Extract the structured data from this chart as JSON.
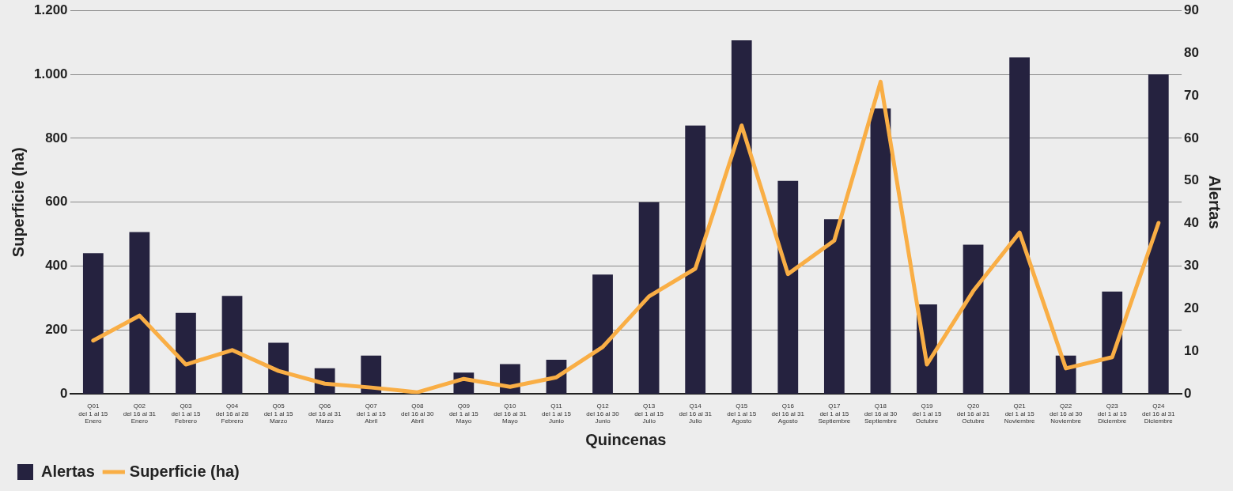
{
  "chart_data": {
    "type": "bar",
    "xlabel": "Quincenas",
    "ylabel": "Superficie (ha)",
    "y2label": "Alertas",
    "categories": [
      "Q01\ndel 1 al 15\nEnero",
      "Q02\ndel 16 al 31\nEnero",
      "Q03\ndel 1 al 15\nFebrero",
      "Q04\ndel 16 al 28\nFebrero",
      "Q05\ndel 1 al 15\nMarzo",
      "Q06\ndel 16 al 31\nMarzo",
      "Q07\ndel 1 al 15\nAbril",
      "Q08\ndel 16 al 30\nAbril",
      "Q09\ndel 1 al 15\nMayo",
      "Q10\ndel 16 al 31\nMayo",
      "Q11\ndel 1 al 15\nJunio",
      "Q12\ndel 16 al 30\nJunio",
      "Q13\ndel 1 al 15\nJulio",
      "Q14\ndel 16 al 31\nJulio",
      "Q15\ndel 1 al 15\nAgosto",
      "Q16\ndel 16 al 31\nAgosto",
      "Q17\ndel 1 al 15\nSeptiembre",
      "Q18\ndel 16 al 30\nSeptiembre",
      "Q19\ndel 1 al 15\nOctubre",
      "Q20\ndel 16 al 31\nOctubre",
      "Q21\ndel 1 al 15\nNoviembre",
      "Q22\ndel 16 al 30\nNoviembre",
      "Q23\ndel 1 al 15\nDiciembre",
      "Q24\ndel 16 al 31\nDiciembre"
    ],
    "series": [
      {
        "name": "Alertas",
        "axis": "y2",
        "color": "#25223f",
        "values": [
          33,
          38,
          19,
          23,
          12,
          6,
          9,
          0,
          5,
          7,
          8,
          28,
          45,
          63,
          83,
          50,
          41,
          67,
          21,
          35,
          79,
          9,
          24,
          75
        ]
      },
      {
        "name": "Superficie (ha)",
        "type": "line",
        "color": "#f9ae45",
        "values": [
          167,
          245,
          92,
          137,
          72,
          32,
          20,
          5,
          47,
          22,
          52,
          147,
          305,
          392,
          840,
          375,
          480,
          977,
          92,
          322,
          505,
          80,
          115,
          535
        ]
      }
    ],
    "ylim": [
      0,
      1200
    ],
    "yticks": [
      {
        "value": 0,
        "label": "0"
      },
      {
        "value": 200,
        "label": "200"
      },
      {
        "value": 400,
        "label": "400"
      },
      {
        "value": 600,
        "label": "600"
      },
      {
        "value": 800,
        "label": "800"
      },
      {
        "value": 1000,
        "label": "1.000"
      },
      {
        "value": 1200,
        "label": "1.200"
      }
    ],
    "y2lim": [
      0,
      90
    ],
    "y2ticks": [
      0,
      10,
      20,
      30,
      40,
      50,
      60,
      70,
      80,
      90
    ],
    "grid": "y",
    "legend": "bottom left",
    "marker": "none",
    "line_style": "solid"
  }
}
